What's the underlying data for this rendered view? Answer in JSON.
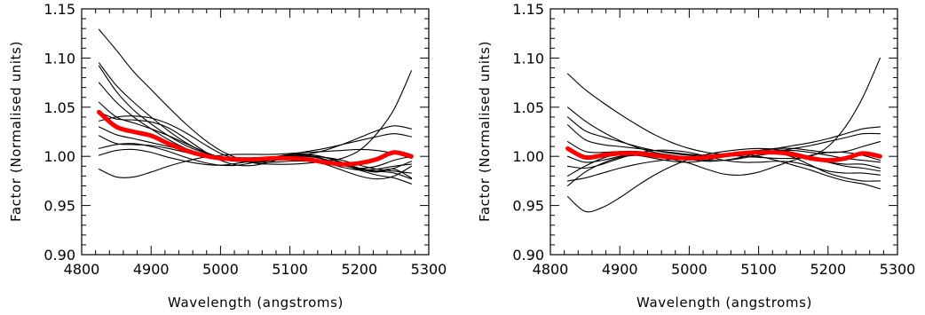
{
  "chart_data": [
    {
      "type": "line",
      "xlabel": "Wavelength (angstroms)",
      "ylabel": "Factor (Normalised units)",
      "xlim": [
        4800,
        5300
      ],
      "ylim": [
        0.9,
        1.15
      ],
      "xticks": [
        4800,
        4900,
        5000,
        5100,
        5200,
        5300
      ],
      "xtick_labels": [
        "4800",
        "4900",
        "5000",
        "5100",
        "5200",
        "5300"
      ],
      "yticks": [
        0.9,
        0.95,
        1.0,
        1.05,
        1.1,
        1.15
      ],
      "ytick_labels": [
        "0.90",
        "0.95",
        "1.00",
        "1.05",
        "1.10",
        "1.15"
      ],
      "grid": false,
      "line_color": "#000000",
      "mean_color": "#ff0000",
      "x": [
        4825,
        4850,
        4875,
        4900,
        4925,
        4950,
        4975,
        5000,
        5025,
        5050,
        5075,
        5100,
        5125,
        5150,
        5175,
        5200,
        5225,
        5250,
        5275
      ],
      "series": [
        {
          "values": [
            1.129,
            1.108,
            1.086,
            1.068,
            1.05,
            1.033,
            1.018,
            1.006,
            0.998,
            0.993,
            0.992,
            0.992,
            0.993,
            0.995,
            0.998,
            1.006,
            1.023,
            1.048,
            1.087
          ]
        },
        {
          "values": [
            1.095,
            1.072,
            1.055,
            1.04,
            1.026,
            1.014,
            1.005,
            0.999,
            0.995,
            0.994,
            0.996,
            0.999,
            1.002,
            1.006,
            1.012,
            1.019,
            1.026,
            1.031,
            1.028
          ]
        },
        {
          "values": [
            1.092,
            1.066,
            1.047,
            1.033,
            1.021,
            1.011,
            1.004,
            0.999,
            0.997,
            0.997,
            0.999,
            1.002,
            1.005,
            1.008,
            1.012,
            1.016,
            1.02,
            1.023,
            1.02
          ]
        },
        {
          "values": [
            1.075,
            1.055,
            1.04,
            1.028,
            1.017,
            1.008,
            1.001,
            0.997,
            0.995,
            0.995,
            0.997,
            0.999,
            1.0,
            0.999,
            0.996,
            0.991,
            0.987,
            0.985,
            0.983
          ]
        },
        {
          "values": [
            1.055,
            1.04,
            1.034,
            1.028,
            1.021,
            1.013,
            1.005,
            0.999,
            0.996,
            0.996,
            0.998,
            1.0,
            1.0,
            0.997,
            0.992,
            0.987,
            0.985,
            0.987,
            0.978
          ]
        },
        {
          "values": [
            1.045,
            1.038,
            1.037,
            1.035,
            1.029,
            1.018,
            1.006,
            0.996,
            0.991,
            0.991,
            0.995,
            1.0,
            1.002,
            0.999,
            0.993,
            0.987,
            0.984,
            0.988,
            0.995
          ]
        },
        {
          "values": [
            1.036,
            1.04,
            1.041,
            1.039,
            1.033,
            1.024,
            1.013,
            1.003,
            0.997,
            0.994,
            0.994,
            0.995,
            0.995,
            0.992,
            0.986,
            0.98,
            0.977,
            0.98,
            0.99
          ]
        },
        {
          "values": [
            1.03,
            1.022,
            1.018,
            1.014,
            1.01,
            1.006,
            1.001,
            0.997,
            0.995,
            0.996,
            0.999,
            1.002,
            1.002,
            0.999,
            0.994,
            0.988,
            0.985,
            0.983,
            0.977
          ]
        },
        {
          "values": [
            1.021,
            1.013,
            1.012,
            1.011,
            1.008,
            1.004,
            1.0,
            0.997,
            0.995,
            0.995,
            0.996,
            0.997,
            0.997,
            0.996,
            0.992,
            0.986,
            0.981,
            0.978,
            0.972
          ]
        },
        {
          "values": [
            1.008,
            1.012,
            1.013,
            1.01,
            1.005,
            0.999,
            0.994,
            0.991,
            0.991,
            0.994,
            0.998,
            1.001,
            1.001,
            0.997,
            0.991,
            0.988,
            0.99,
            0.996,
            1.0
          ]
        },
        {
          "values": [
            1.001,
            1.006,
            1.007,
            1.004,
            0.999,
            0.995,
            0.992,
            0.991,
            0.993,
            0.996,
            0.999,
            1.0,
            0.998,
            0.994,
            0.989,
            0.986,
            0.987,
            0.99,
            0.992
          ]
        },
        {
          "values": [
            0.987,
            0.979,
            0.979,
            0.984,
            0.99,
            0.995,
            0.999,
            1.001,
            1.002,
            1.002,
            1.002,
            1.003,
            1.004,
            1.005,
            1.006,
            1.007,
            1.006,
            1.003,
            0.998
          ]
        },
        {
          "name": "mean",
          "values": [
            1.045,
            1.03,
            1.025,
            1.021,
            1.013,
            1.006,
            1.001,
            0.998,
            0.997,
            0.997,
            0.998,
            0.998,
            0.997,
            0.994,
            0.992,
            0.993,
            0.997,
            1.004,
            1.0
          ]
        }
      ]
    },
    {
      "type": "line",
      "xlabel": "Wavelength (angstroms)",
      "ylabel": "Factor (Normalised units)",
      "xlim": [
        4800,
        5300
      ],
      "ylim": [
        0.9,
        1.15
      ],
      "xticks": [
        4800,
        4900,
        5000,
        5100,
        5200,
        5300
      ],
      "xtick_labels": [
        "4800",
        "4900",
        "5000",
        "5100",
        "5200",
        "5300"
      ],
      "yticks": [
        0.9,
        0.95,
        1.0,
        1.05,
        1.1,
        1.15
      ],
      "ytick_labels": [
        "0.90",
        "0.95",
        "1.00",
        "1.05",
        "1.10",
        "1.15"
      ],
      "grid": false,
      "line_color": "#000000",
      "mean_color": "#ff0000",
      "x": [
        4825,
        4850,
        4875,
        4900,
        4925,
        4950,
        4975,
        5000,
        5025,
        5050,
        5075,
        5100,
        5125,
        5150,
        5175,
        5200,
        5225,
        5250,
        5275
      ],
      "series": [
        {
          "values": [
            1.084,
            1.068,
            1.055,
            1.043,
            1.032,
            1.022,
            1.014,
            1.008,
            1.004,
            1.002,
            1.0,
            0.999,
            0.998,
            0.998,
            1.0,
            1.01,
            1.03,
            1.06,
            1.1
          ]
        },
        {
          "values": [
            1.05,
            1.036,
            1.025,
            1.016,
            1.009,
            1.004,
            1.001,
            0.999,
            0.999,
            1.0,
            1.002,
            1.005,
            1.008,
            1.011,
            1.014,
            1.018,
            1.023,
            1.028,
            1.03
          ]
        },
        {
          "values": [
            1.04,
            1.026,
            1.02,
            1.015,
            1.01,
            1.006,
            1.003,
            1.001,
            1.0,
            1.0,
            1.001,
            1.003,
            1.005,
            1.008,
            1.011,
            1.015,
            1.019,
            1.023,
            1.023
          ]
        },
        {
          "values": [
            1.032,
            1.017,
            1.012,
            1.01,
            1.008,
            1.006,
            1.004,
            1.002,
            1.001,
            1.001,
            1.003,
            1.006,
            1.008,
            1.008,
            1.006,
            1.004,
            1.005,
            1.01,
            1.015
          ]
        },
        {
          "values": [
            1.015,
            1.005,
            1.004,
            1.005,
            1.005,
            1.003,
            1.0,
            0.997,
            0.995,
            0.996,
            0.999,
            1.003,
            1.006,
            1.006,
            1.004,
            1.001,
            0.998,
            0.996,
            0.994
          ]
        },
        {
          "values": [
            1.0,
            0.994,
            0.996,
            1.0,
            1.003,
            1.003,
            1.001,
            0.998,
            0.996,
            0.996,
            0.998,
            1.001,
            1.003,
            1.002,
            0.998,
            0.994,
            0.992,
            0.992,
            0.988
          ]
        },
        {
          "values": [
            0.99,
            0.988,
            0.992,
            0.998,
            1.003,
            1.006,
            1.006,
            1.004,
            1.0,
            0.996,
            0.994,
            0.994,
            0.995,
            0.994,
            0.99,
            0.985,
            0.983,
            0.983,
            0.981
          ]
        },
        {
          "values": [
            0.98,
            0.99,
            0.998,
            1.002,
            1.001,
            0.998,
            0.995,
            0.994,
            0.996,
            1.0,
            1.004,
            1.006,
            1.004,
            0.999,
            0.991,
            0.983,
            0.978,
            0.975,
            0.975
          ]
        },
        {
          "values": [
            0.975,
            0.978,
            0.983,
            0.988,
            0.992,
            0.995,
            0.997,
            0.999,
            1.001,
            1.002,
            1.002,
            1.0,
            0.996,
            0.991,
            0.986,
            0.98,
            0.975,
            0.972,
            0.967
          ]
        },
        {
          "values": [
            0.97,
            0.984,
            0.993,
            0.999,
            1.001,
            1.0,
            0.997,
            0.993,
            0.987,
            0.982,
            0.981,
            0.984,
            0.99,
            0.996,
            1.001,
            1.004,
            1.004,
            1.001,
            0.996
          ]
        },
        {
          "values": [
            0.959,
            0.944,
            0.948,
            0.958,
            0.97,
            0.981,
            0.99,
            0.997,
            1.002,
            1.005,
            1.007,
            1.008,
            1.007,
            1.004,
            0.999,
            0.994,
            0.99,
            0.988,
            0.985
          ]
        },
        {
          "name": "mean",
          "values": [
            1.008,
            0.999,
            1.001,
            1.003,
            1.003,
            1.001,
            0.999,
            0.998,
            0.999,
            1.001,
            1.003,
            1.004,
            1.004,
            1.002,
            0.998,
            0.996,
            0.998,
            1.003,
            1.0
          ]
        }
      ]
    }
  ]
}
